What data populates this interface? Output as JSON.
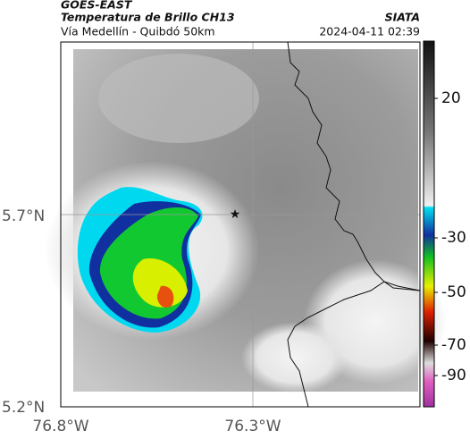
{
  "header": {
    "satellite": "GOES-EAST",
    "product": "Temperatura de Brillo CH13",
    "route": "Vía Medellín - Quibdó 50km",
    "source": "SIATA",
    "datetime": "2024-04-11 02:39"
  },
  "axes": {
    "lat_labels": [
      "5.7°N",
      "5.2°N"
    ],
    "lon_labels": [
      "76.8°W",
      "76.3°W"
    ]
  },
  "colorbar": {
    "ticks": [
      20,
      -30,
      -50,
      -70,
      -90
    ]
  }
}
